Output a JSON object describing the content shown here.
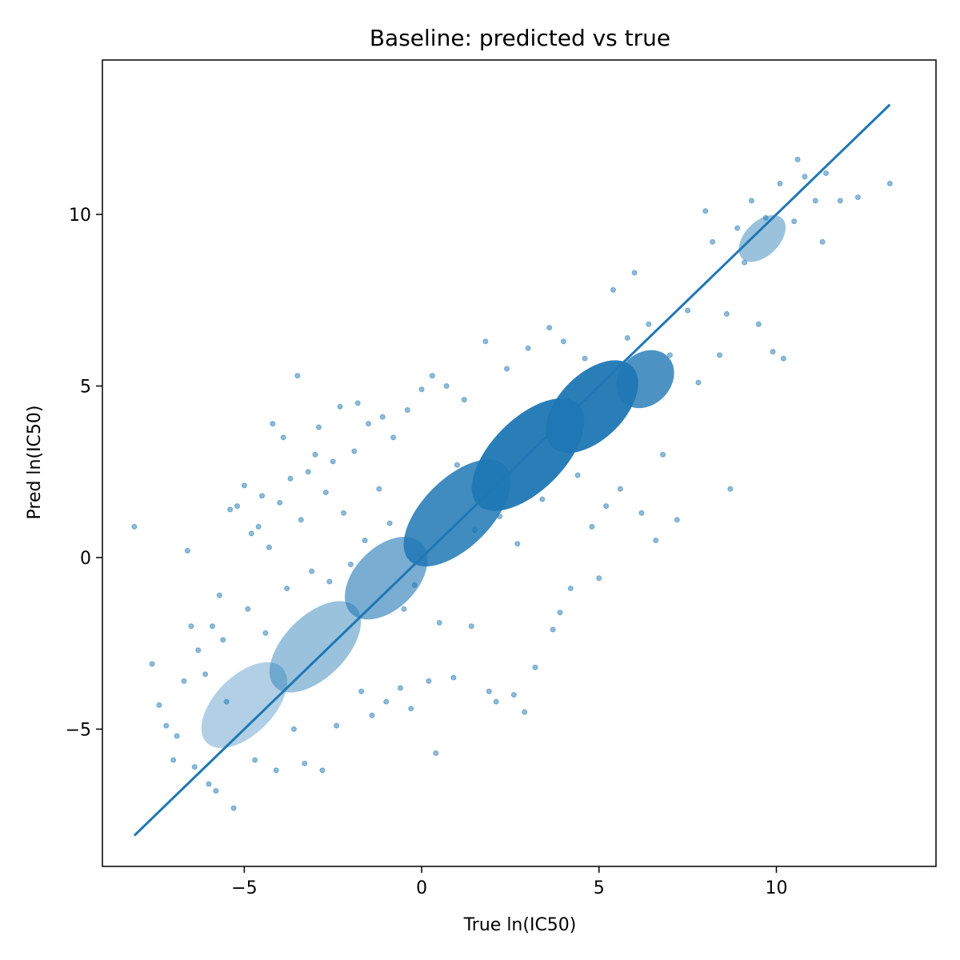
{
  "chart_data": {
    "type": "scatter",
    "title": "Baseline: predicted vs true",
    "xlabel": "True ln(IC50)",
    "ylabel": "Pred ln(IC50)",
    "xlim": [
      -9.0,
      14.5
    ],
    "ylim": [
      -9.0,
      14.5
    ],
    "xticks": [
      -5,
      0,
      5,
      10
    ],
    "yticks": [
      -5,
      0,
      5,
      10
    ],
    "xtick_labels": [
      "−5",
      "0",
      "5",
      "10"
    ],
    "ytick_labels": [
      "−5",
      "0",
      "5",
      "10"
    ],
    "grid": false,
    "legend": "none",
    "series": [
      {
        "kind": "points",
        "color": "#1f77b4",
        "alpha": 0.5,
        "points": [
          [
            -8.1,
            0.9
          ],
          [
            -7.6,
            -3.1
          ],
          [
            -7.4,
            -4.3
          ],
          [
            -7.2,
            -4.9
          ],
          [
            -7.0,
            -5.9
          ],
          [
            -6.9,
            -5.2
          ],
          [
            -6.7,
            -3.6
          ],
          [
            -6.6,
            0.2
          ],
          [
            -6.5,
            -2.0
          ],
          [
            -6.4,
            -6.1
          ],
          [
            -6.3,
            -2.7
          ],
          [
            -6.1,
            -3.4
          ],
          [
            -6.0,
            -6.6
          ],
          [
            -5.9,
            -2.0
          ],
          [
            -5.8,
            -6.8
          ],
          [
            -5.7,
            -1.1
          ],
          [
            -5.6,
            -2.4
          ],
          [
            -5.5,
            -4.2
          ],
          [
            -5.4,
            1.4
          ],
          [
            -5.3,
            -7.3
          ],
          [
            -5.2,
            1.5
          ],
          [
            -5.0,
            2.1
          ],
          [
            -4.9,
            -1.5
          ],
          [
            -4.8,
            0.7
          ],
          [
            -4.7,
            -5.9
          ],
          [
            -4.6,
            0.9
          ],
          [
            -4.5,
            1.8
          ],
          [
            -4.4,
            -2.2
          ],
          [
            -4.3,
            0.3
          ],
          [
            -4.2,
            3.9
          ],
          [
            -4.1,
            -6.2
          ],
          [
            -4.0,
            1.6
          ],
          [
            -3.9,
            3.5
          ],
          [
            -3.8,
            -0.9
          ],
          [
            -3.7,
            2.3
          ],
          [
            -3.6,
            -5.0
          ],
          [
            -3.5,
            5.3
          ],
          [
            -3.4,
            1.1
          ],
          [
            -3.3,
            -6.0
          ],
          [
            -3.2,
            2.5
          ],
          [
            -3.1,
            -0.4
          ],
          [
            -3.0,
            3.0
          ],
          [
            -2.9,
            3.8
          ],
          [
            -2.8,
            -6.2
          ],
          [
            -2.7,
            1.9
          ],
          [
            -2.6,
            -0.7
          ],
          [
            -2.5,
            2.8
          ],
          [
            -2.4,
            -4.9
          ],
          [
            -2.3,
            4.4
          ],
          [
            -2.2,
            1.3
          ],
          [
            -2.0,
            -0.2
          ],
          [
            -1.9,
            3.1
          ],
          [
            -1.8,
            4.5
          ],
          [
            -1.7,
            -3.9
          ],
          [
            -1.6,
            0.5
          ],
          [
            -1.5,
            3.9
          ],
          [
            -1.4,
            -4.6
          ],
          [
            -1.2,
            2.0
          ],
          [
            -1.1,
            4.1
          ],
          [
            -1.0,
            -4.2
          ],
          [
            -0.9,
            1.0
          ],
          [
            -0.8,
            3.5
          ],
          [
            -0.6,
            -3.8
          ],
          [
            -0.5,
            -1.5
          ],
          [
            -0.4,
            4.3
          ],
          [
            -0.3,
            -4.4
          ],
          [
            -0.2,
            -0.8
          ],
          [
            0.0,
            4.9
          ],
          [
            0.2,
            -3.6
          ],
          [
            0.3,
            5.3
          ],
          [
            0.4,
            -5.7
          ],
          [
            0.5,
            -1.9
          ],
          [
            0.7,
            5.0
          ],
          [
            0.9,
            -3.5
          ],
          [
            1.0,
            2.7
          ],
          [
            1.2,
            4.6
          ],
          [
            1.4,
            -2.0
          ],
          [
            1.5,
            0.8
          ],
          [
            1.8,
            6.3
          ],
          [
            1.9,
            -3.9
          ],
          [
            2.1,
            -4.2
          ],
          [
            2.2,
            1.2
          ],
          [
            2.4,
            5.5
          ],
          [
            2.6,
            -4.0
          ],
          [
            2.7,
            0.4
          ],
          [
            2.9,
            -4.5
          ],
          [
            3.0,
            6.1
          ],
          [
            3.2,
            -3.2
          ],
          [
            3.4,
            1.7
          ],
          [
            3.6,
            6.7
          ],
          [
            3.7,
            -2.1
          ],
          [
            3.9,
            -1.6
          ],
          [
            4.0,
            6.3
          ],
          [
            4.2,
            -0.9
          ],
          [
            4.4,
            2.4
          ],
          [
            4.6,
            5.8
          ],
          [
            4.8,
            0.9
          ],
          [
            5.0,
            -0.6
          ],
          [
            5.2,
            1.5
          ],
          [
            5.4,
            7.8
          ],
          [
            5.6,
            2.0
          ],
          [
            5.8,
            6.4
          ],
          [
            6.0,
            8.3
          ],
          [
            6.2,
            1.3
          ],
          [
            6.4,
            6.8
          ],
          [
            6.6,
            0.5
          ],
          [
            6.8,
            3.0
          ],
          [
            7.0,
            5.9
          ],
          [
            7.2,
            1.1
          ],
          [
            7.5,
            7.2
          ],
          [
            7.8,
            5.1
          ],
          [
            8.0,
            10.1
          ],
          [
            8.2,
            9.2
          ],
          [
            8.4,
            5.9
          ],
          [
            8.6,
            7.1
          ],
          [
            8.7,
            2.0
          ],
          [
            8.9,
            9.6
          ],
          [
            9.1,
            8.6
          ],
          [
            9.3,
            10.4
          ],
          [
            9.5,
            6.8
          ],
          [
            9.7,
            9.9
          ],
          [
            9.9,
            6.0
          ],
          [
            10.1,
            10.9
          ],
          [
            10.2,
            5.8
          ],
          [
            10.5,
            9.8
          ],
          [
            10.8,
            11.1
          ],
          [
            11.1,
            10.4
          ],
          [
            11.4,
            11.2
          ],
          [
            11.8,
            10.4
          ],
          [
            12.3,
            10.5
          ],
          [
            13.2,
            10.9
          ],
          [
            10.6,
            11.6
          ],
          [
            11.3,
            9.2
          ]
        ]
      },
      {
        "kind": "line",
        "name": "",
        "color": "#1f77b4",
        "x": [
          -8.1,
          13.2
        ],
        "y": [
          -8.1,
          13.2
        ]
      }
    ]
  }
}
